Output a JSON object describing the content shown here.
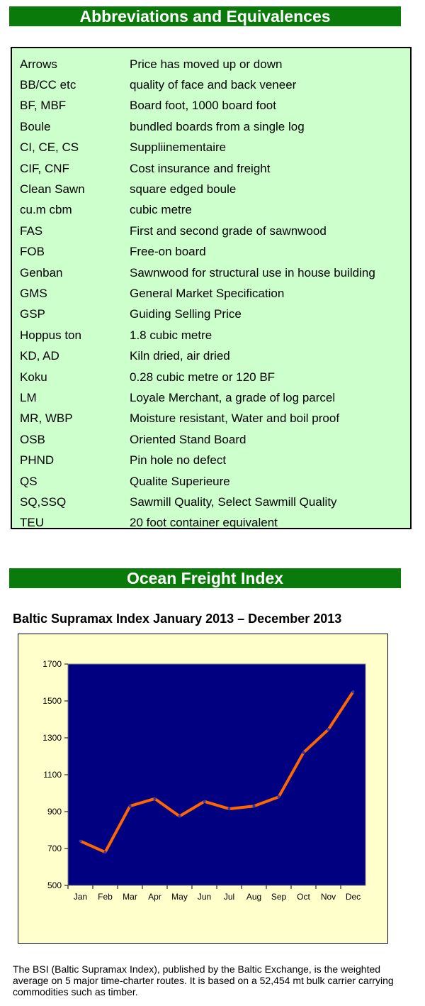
{
  "abbreviations": {
    "header": "Abbreviations and Equivalences",
    "rows": [
      {
        "term": "Arrows",
        "definition": "Price has moved up or down"
      },
      {
        "term": "BB/CC etc",
        "definition": "quality of face and back veneer"
      },
      {
        "term": "BF, MBF",
        "definition": "Board foot, 1000 board foot"
      },
      {
        "term": "Boule",
        "definition": "bundled boards from a single log"
      },
      {
        "term": "CI, CE, CS",
        "definition": "Suppliinementaire"
      },
      {
        "term": "CIF, CNF",
        "definition": "Cost insurance and freight"
      },
      {
        "term": "Clean Sawn",
        "definition": "square edged boule"
      },
      {
        "term": "cu.m cbm",
        "definition": "cubic metre"
      },
      {
        "term": "FAS",
        "definition": "First and second grade of sawnwood"
      },
      {
        "term": "FOB",
        "definition": "Free-on board"
      },
      {
        "term": "Genban",
        "definition": "Sawnwood for structural use in house building"
      },
      {
        "term": "GMS",
        "definition": "General Market Specification"
      },
      {
        "term": "GSP",
        "definition": "Guiding Selling Price"
      },
      {
        "term": "Hoppus ton",
        "definition": "1.8 cubic metre"
      },
      {
        "term": "KD, AD",
        "definition": "Kiln dried, air dried"
      },
      {
        "term": "Koku",
        "definition": "0.28 cubic metre or 120 BF"
      },
      {
        "term": "LM",
        "definition": "Loyale Merchant, a grade of log parcel"
      },
      {
        "term": "MR, WBP",
        "definition": "Moisture resistant, Water and boil proof"
      },
      {
        "term": "OSB",
        "definition": "Oriented Stand Board"
      },
      {
        "term": "PHND",
        "definition": "Pin hole no defect"
      },
      {
        "term": "QS",
        "definition": "Qualite Superieure"
      },
      {
        "term": "SQ,SSQ",
        "definition": "Sawmill Quality, Select Sawmill Quality"
      },
      {
        "term": "TEU",
        "definition": "20 foot container equivalent"
      }
    ]
  },
  "ocean": {
    "header": "Ocean Freight Index",
    "caption": "The BSI (Baltic Supramax Index), published by the Baltic Exchange, is the weighted average on 5 major time-charter routes. It is based on a 52,454 mt bulk carrier carrying commodities such as timber."
  },
  "chart_data": {
    "type": "line",
    "title": "Baltic Supramax Index January 2013 –  December 2013",
    "categories": [
      "Jan",
      "Feb",
      "Mar",
      "Apr",
      "May",
      "Jun",
      "Jul",
      "Aug",
      "Sep",
      "Oct",
      "Nov",
      "Dec"
    ],
    "series": [
      {
        "values": [
          740,
          680,
          930,
          970,
          875,
          955,
          915,
          930,
          980,
          1220,
          1345,
          1550
        ]
      }
    ],
    "ylim": [
      500,
      1700
    ],
    "yticks": [
      500,
      700,
      900,
      1100,
      1300,
      1500,
      1700
    ],
    "grid": false,
    "legend": "none",
    "colors": {
      "plot_bg": "#000080",
      "line": "#ff6600",
      "marker": "#3333aa",
      "box_bg": "#ffffcc"
    }
  }
}
